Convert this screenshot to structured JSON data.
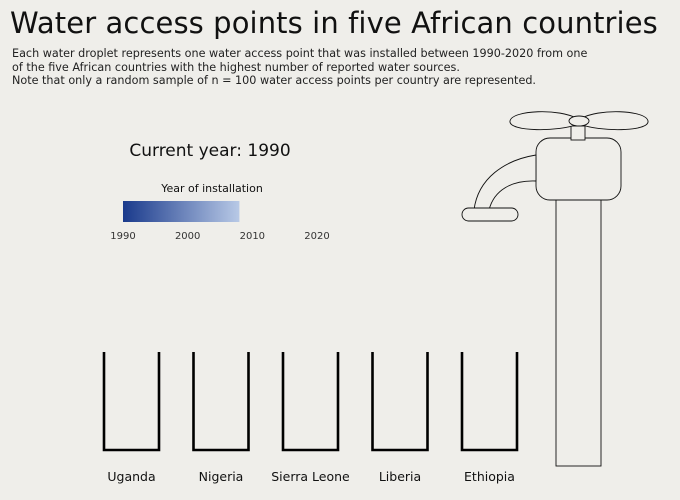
{
  "title": "Water access points in five African countries",
  "subtitle": [
    "Each water droplet represents one water access point that was installed between 1990-2020 from one",
    "of the five African countries with the highest number of reported water sources.",
    "Note that only a random sample of n = 100 water access points per country are represented."
  ],
  "current_year_label": "Current year: 1990",
  "legend": {
    "title": "Year of installation",
    "ticks": [
      "1990",
      "2000",
      "2010",
      "2020"
    ],
    "range": [
      1990,
      2020
    ],
    "ramp_end": 2008,
    "color_start": "#1a3a8c",
    "color_end": "#b8c9e6"
  },
  "chart_data": {
    "type": "bar",
    "categories": [
      "Uganda",
      "Nigeria",
      "Sierra Leone",
      "Liberia",
      "Ethiopia"
    ],
    "values": [
      0,
      0,
      0,
      0,
      0
    ],
    "current_year": 1990,
    "sample_size_per_country": 100
  }
}
